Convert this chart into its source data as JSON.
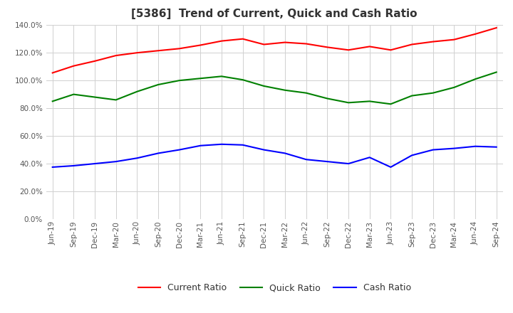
{
  "title": "[5386]  Trend of Current, Quick and Cash Ratio",
  "x_labels": [
    "Jun-19",
    "Sep-19",
    "Dec-19",
    "Mar-20",
    "Jun-20",
    "Sep-20",
    "Dec-20",
    "Mar-21",
    "Jun-21",
    "Sep-21",
    "Dec-21",
    "Mar-22",
    "Jun-22",
    "Sep-22",
    "Dec-22",
    "Mar-23",
    "Jun-23",
    "Sep-23",
    "Dec-23",
    "Mar-24",
    "Jun-24",
    "Sep-24"
  ],
  "current_ratio": [
    105.5,
    110.5,
    114.0,
    118.0,
    120.0,
    121.5,
    123.0,
    125.5,
    128.5,
    130.0,
    126.0,
    127.5,
    126.5,
    124.0,
    122.0,
    124.5,
    122.0,
    126.0,
    128.0,
    129.5,
    133.5,
    138.0
  ],
  "quick_ratio": [
    85.0,
    90.0,
    88.0,
    86.0,
    92.0,
    97.0,
    100.0,
    101.5,
    103.0,
    100.5,
    96.0,
    93.0,
    91.0,
    87.0,
    84.0,
    85.0,
    83.0,
    89.0,
    91.0,
    95.0,
    101.0,
    106.0
  ],
  "cash_ratio": [
    37.5,
    38.5,
    40.0,
    41.5,
    44.0,
    47.5,
    50.0,
    53.0,
    54.0,
    53.5,
    50.0,
    47.5,
    43.0,
    41.5,
    40.0,
    44.5,
    37.5,
    46.0,
    50.0,
    51.0,
    52.5,
    52.0
  ],
  "current_color": "#ff0000",
  "quick_color": "#008000",
  "cash_color": "#0000ff",
  "ylim": [
    0,
    140
  ],
  "yticks": [
    0,
    20,
    40,
    60,
    80,
    100,
    120,
    140
  ],
  "background_color": "#ffffff",
  "grid_color": "#d0d0d0",
  "title_fontsize": 11,
  "tick_fontsize": 7.5,
  "legend_labels": [
    "Current Ratio",
    "Quick Ratio",
    "Cash Ratio"
  ]
}
